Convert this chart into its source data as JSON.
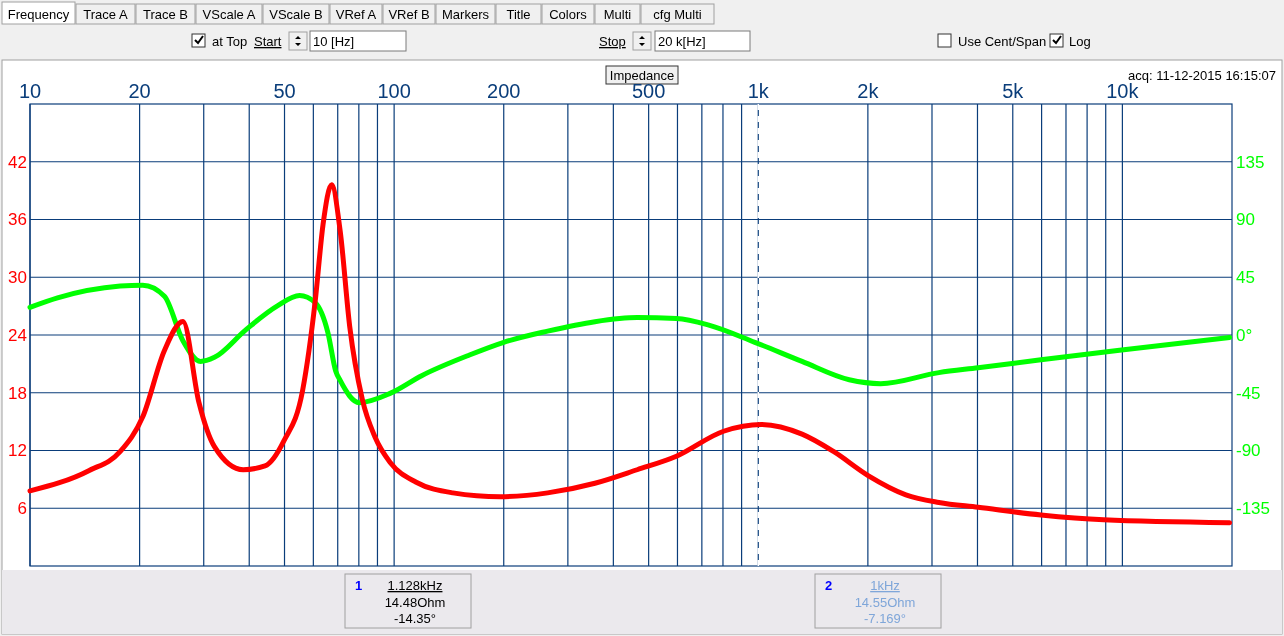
{
  "chart_data": {
    "type": "line",
    "title": "Impedance",
    "annotations": [
      "Frequency",
      "Trace A",
      "Trace B",
      "VScale A",
      "VScale B",
      "VRef A",
      "VRef B",
      "Markers",
      "Title",
      "Colors",
      "Multi",
      "cfg Multi",
      "at Top",
      "Start",
      "10 [Hz]",
      "Stop",
      "20 k[Hz]",
      "Use Cent/Span",
      "Log",
      "acq: 11-12-2015 16:15:07",
      "1",
      "1.128kHz",
      "14.48Ohm",
      "-14.35°",
      "2",
      "1kHz",
      "14.55Ohm",
      "-7.169°"
    ],
    "log": "x",
    "grid": true,
    "xlim": [
      10,
      20000
    ],
    "xticks": [
      {
        "value": 10,
        "label": "10"
      },
      {
        "value": 20,
        "label": "20"
      },
      {
        "value": 30,
        "label": null
      },
      {
        "value": 40,
        "label": null
      },
      {
        "value": 50,
        "label": "50"
      },
      {
        "value": 60,
        "label": null
      },
      {
        "value": 70,
        "label": null
      },
      {
        "value": 80,
        "label": null
      },
      {
        "value": 90,
        "label": null
      },
      {
        "value": 100,
        "label": "100"
      },
      {
        "value": 200,
        "label": "200"
      },
      {
        "value": 300,
        "label": null
      },
      {
        "value": 400,
        "label": null
      },
      {
        "value": 500,
        "label": "500"
      },
      {
        "value": 600,
        "label": null
      },
      {
        "value": 700,
        "label": null
      },
      {
        "value": 800,
        "label": null
      },
      {
        "value": 900,
        "label": null
      },
      {
        "value": 1000,
        "label": "1k"
      },
      {
        "value": 2000,
        "label": "2k"
      },
      {
        "value": 3000,
        "label": null
      },
      {
        "value": 4000,
        "label": null
      },
      {
        "value": 5000,
        "label": "5k"
      },
      {
        "value": 6000,
        "label": null
      },
      {
        "value": 7000,
        "label": null
      },
      {
        "value": 8000,
        "label": null
      },
      {
        "value": 9000,
        "label": null
      },
      {
        "value": 10000,
        "label": "10k"
      }
    ],
    "ylim": [
      0,
      48
    ],
    "yticks": [
      6,
      12,
      18,
      24,
      30,
      36,
      42
    ],
    "y2lim": [
      -180,
      180
    ],
    "y2ticks": [
      -135,
      -90,
      -45,
      {
        "value": 0,
        "label": "0°"
      },
      45,
      90,
      135
    ],
    "ref_lines": [
      {
        "axis": "x",
        "value": 1000,
        "color": "#ffffff",
        "line_style": "dashed"
      }
    ],
    "series": [
      {
        "color": "#00ff00",
        "axis": "y2",
        "x": [
          10,
          11.9,
          17.7,
          20.4,
          23.4,
          26.3,
          29.4,
          32.1,
          39.2,
          47.8,
          55,
          60.7,
          65.8,
          69.1,
          71.1,
          80.2,
          97.8,
          119,
          161,
          200,
          264,
          356,
          465,
          596,
          728,
          979,
          1319,
          1778,
          2168,
          3133,
          4017,
          5975,
          9817,
          19700
        ],
        "values": [
          21.5,
          28.9,
          38.1,
          38.8,
          30.2,
          -4.5,
          -20.6,
          -17.4,
          4.2,
          22.7,
          30.7,
          25.2,
          1.7,
          -28,
          -35.4,
          -52.7,
          -45.3,
          -31.7,
          -15.6,
          -5.7,
          3,
          10.4,
          13.6,
          12.8,
          7.9,
          -5.7,
          -20.6,
          -34.9,
          -37.9,
          -29.3,
          -25.5,
          -19.3,
          -11.9,
          -2
        ]
      },
      {
        "color": "#ff0000",
        "axis": "y",
        "x": [
          10,
          14.5,
          17.7,
          20.4,
          23.4,
          26.3,
          29.1,
          32.1,
          38.5,
          44.2,
          49.8,
          56.1,
          60.7,
          63.8,
          67.3,
          71.1,
          75.5,
          81.8,
          88.6,
          97.8,
          115,
          145,
          196,
          264,
          356,
          465,
          596,
          803,
          1019,
          1319,
          1609,
          2003,
          2543,
          3133,
          4017,
          5975,
          8886,
          19700
        ],
        "values": [
          7.8,
          9.9,
          11.9,
          15.5,
          22.4,
          25.4,
          17,
          12.4,
          10,
          10.4,
          13,
          18.3,
          27.5,
          35.5,
          39.6,
          34.8,
          24.9,
          17.3,
          13.4,
          10.7,
          8.7,
          7.6,
          7.2,
          7.6,
          8.6,
          10,
          11.4,
          14,
          14.7,
          13.7,
          11.9,
          9.4,
          7.4,
          6.6,
          6.1,
          5.3,
          4.8,
          4.5
        ]
      }
    ]
  }
}
